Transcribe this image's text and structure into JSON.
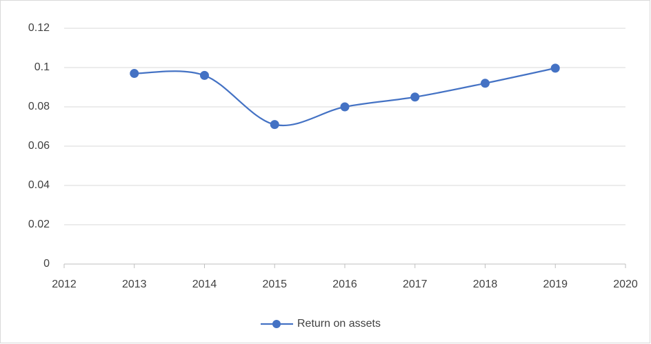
{
  "chart_data": {
    "type": "line",
    "x": [
      2013,
      2014,
      2015,
      2016,
      2017,
      2018,
      2019
    ],
    "series": [
      {
        "name": "Return on assets",
        "color": "#4472c4",
        "values": [
          0.097,
          0.096,
          0.071,
          0.08,
          0.085,
          0.092,
          0.0997
        ]
      }
    ],
    "xlim": [
      2012,
      2020
    ],
    "xticks": [
      2012,
      2013,
      2014,
      2015,
      2016,
      2017,
      2018,
      2019,
      2020
    ],
    "ylim": [
      0,
      0.12
    ],
    "yticks": [
      0,
      0.02,
      0.04,
      0.06,
      0.08,
      0.1,
      0.12
    ],
    "grid": true,
    "smooth": true,
    "legend": "bottom"
  }
}
